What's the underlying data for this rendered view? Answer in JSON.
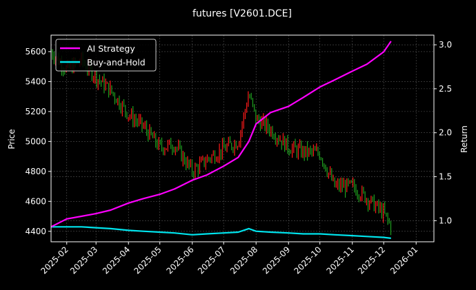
{
  "colors": {
    "background": "#000000",
    "axes": "#ffffff",
    "grid": "#555555",
    "ai_strategy": "#ff00ff",
    "buy_and_hold": "#00e5ee",
    "candle_up": "#ff1a1a",
    "candle_down": "#1f9f1f"
  },
  "chart_data": {
    "type": "line",
    "title": "futures [V2601.DCE]",
    "xlabel": "",
    "ylabel_left": "Price",
    "ylabel_right": "Return",
    "grid": true,
    "legend_position": "upper left",
    "legend": [
      "AI Strategy",
      "Buy-and-Hold"
    ],
    "x_ticks": [
      "2025-02",
      "2025-03",
      "2025-04",
      "2025-05",
      "2025-06",
      "2025-07",
      "2025-08",
      "2025-09",
      "2025-10",
      "2025-11",
      "2025-12",
      "2026-01"
    ],
    "y_left_ticks": [
      4400,
      4600,
      4800,
      5000,
      5200,
      5400,
      5600
    ],
    "y_left_range": [
      4330,
      5710
    ],
    "y_right_ticks": [
      1.0,
      1.5,
      2.0,
      2.5,
      3.0
    ],
    "y_right_range": [
      0.76,
      3.11
    ],
    "x_dates": [
      "2025-01-17",
      "2025-02-01",
      "2025-02-15",
      "2025-03-01",
      "2025-03-15",
      "2025-04-01",
      "2025-04-15",
      "2025-05-01",
      "2025-05-15",
      "2025-06-01",
      "2025-06-15",
      "2025-07-01",
      "2025-07-15",
      "2025-07-25",
      "2025-08-01",
      "2025-08-15",
      "2025-09-01",
      "2025-09-15",
      "2025-10-01",
      "2025-10-15",
      "2025-11-01",
      "2025-11-15",
      "2025-12-01",
      "2025-12-08"
    ],
    "price_close": [
      5600,
      5480,
      5540,
      5430,
      5340,
      5180,
      5100,
      4960,
      4980,
      4800,
      4880,
      4950,
      5000,
      5320,
      5150,
      5080,
      4960,
      4930,
      4920,
      4700,
      4700,
      4620,
      4520,
      4430
    ],
    "series": [
      {
        "name": "AI Strategy",
        "values": [
          0.93,
          1.02,
          1.05,
          1.08,
          1.12,
          1.2,
          1.25,
          1.3,
          1.36,
          1.46,
          1.52,
          1.62,
          1.72,
          1.9,
          2.1,
          2.23,
          2.3,
          2.4,
          2.52,
          2.6,
          2.7,
          2.78,
          2.92,
          3.04
        ]
      },
      {
        "name": "Buy-and-Hold",
        "values": [
          0.93,
          0.93,
          0.93,
          0.92,
          0.91,
          0.89,
          0.88,
          0.87,
          0.86,
          0.84,
          0.85,
          0.86,
          0.87,
          0.91,
          0.88,
          0.87,
          0.86,
          0.85,
          0.85,
          0.84,
          0.83,
          0.82,
          0.81,
          0.8
        ]
      }
    ]
  }
}
